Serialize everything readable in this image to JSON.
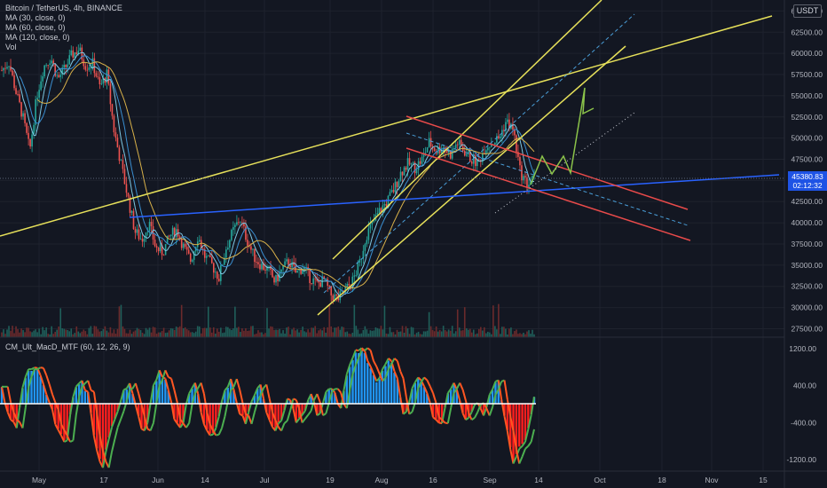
{
  "symbol_legend": {
    "title": "Bitcoin / TetherUS, 4h, BINANCE",
    "ma1": "MA (30, close, 0)",
    "ma2": "MA (60, close, 0)",
    "ma3": "MA (120, close, 0)",
    "vol": "Vol"
  },
  "indicator_legend": {
    "title": "CM_Ult_MacD_MTF (60, 12, 26, 9)"
  },
  "currency_button": "USDT",
  "last_price": {
    "value": "45380.83",
    "countdown": "02:12:32"
  },
  "colors": {
    "background": "#131722",
    "grid": "#1e222d",
    "candle_up": "#26a69a",
    "candle_down": "#ef5350",
    "trendline_yellow": "#e6e05a",
    "channel_red": "#e84a4a",
    "support_blue": "#2962ff",
    "projection_green": "#8bc34a",
    "channel_dashed": "#4a9ed8",
    "ma30": "#7ec8e3",
    "ma60": "#3a8fd1",
    "ma120": "#d8b14a",
    "macd_pos": "#2196f3",
    "macd_neg": "#ff1e1e",
    "macd_line_up": "#4caf50",
    "macd_line_down": "#ff5722"
  },
  "chart_data": {
    "type": "candlestick",
    "price_axis": {
      "ticks": [
        "65000.00",
        "62500.00",
        "60000.00",
        "57500.00",
        "55000.00",
        "52500.00",
        "50000.00",
        "47500.00",
        "45000.00",
        "42500.00",
        "40000.00",
        "37500.00",
        "35000.00",
        "32500.00",
        "30000.00",
        "27500.00"
      ],
      "ylim": [
        26500,
        66300
      ]
    },
    "time_axis": {
      "ticks": [
        "May",
        "17",
        "Jun",
        "14",
        "Jul",
        "19",
        "Aug",
        "16",
        "Sep",
        "14",
        "Oct",
        "18",
        "Nov",
        "15"
      ]
    },
    "indicator_axis": {
      "ticks": [
        "1200.00",
        "400.00",
        "-400.00",
        "-1200.00"
      ],
      "ylim": [
        -1450,
        1450
      ]
    },
    "price_path": [
      [
        0,
        58000
      ],
      [
        1,
        59000
      ],
      [
        2,
        55500
      ],
      [
        3,
        52500
      ],
      [
        4,
        48500
      ],
      [
        5,
        55000
      ],
      [
        6,
        58500
      ],
      [
        7,
        59500
      ],
      [
        8,
        57000
      ],
      [
        9,
        58200
      ],
      [
        10,
        59800
      ],
      [
        11,
        60500
      ],
      [
        12,
        58500
      ],
      [
        13,
        58800
      ],
      [
        14,
        56000
      ],
      [
        15,
        57500
      ],
      [
        16,
        51000
      ],
      [
        17,
        47000
      ],
      [
        18,
        43000
      ],
      [
        19,
        39000
      ],
      [
        20,
        38000
      ],
      [
        21,
        40000
      ],
      [
        22,
        37000
      ],
      [
        23,
        36500
      ],
      [
        24,
        38500
      ],
      [
        25,
        39200
      ],
      [
        26,
        37000
      ],
      [
        27,
        35500
      ],
      [
        28,
        38500
      ],
      [
        29,
        36000
      ],
      [
        30,
        35000
      ],
      [
        31,
        33500
      ],
      [
        32,
        37000
      ],
      [
        33,
        39000
      ],
      [
        34,
        40500
      ],
      [
        35,
        38000
      ],
      [
        36,
        36000
      ],
      [
        37,
        35000
      ],
      [
        38,
        34500
      ],
      [
        39,
        33000
      ],
      [
        40,
        34500
      ],
      [
        41,
        35500
      ],
      [
        42,
        34000
      ],
      [
        43,
        34800
      ],
      [
        44,
        33500
      ],
      [
        45,
        32800
      ],
      [
        46,
        33200
      ],
      [
        47,
        31500
      ],
      [
        48,
        31000
      ],
      [
        49,
        32000
      ],
      [
        50,
        33000
      ],
      [
        51,
        35000
      ],
      [
        52,
        38500
      ],
      [
        53,
        40000
      ],
      [
        54,
        41500
      ],
      [
        55,
        42500
      ],
      [
        56,
        44000
      ],
      [
        57,
        46000
      ],
      [
        58,
        47000
      ],
      [
        59,
        46500
      ],
      [
        60,
        47500
      ],
      [
        61,
        49500
      ],
      [
        62,
        48500
      ],
      [
        63,
        49000
      ],
      [
        64,
        48000
      ],
      [
        65,
        49500
      ],
      [
        66,
        48500
      ],
      [
        67,
        47500
      ],
      [
        68,
        47000
      ],
      [
        69,
        49000
      ],
      [
        70,
        49500
      ],
      [
        71,
        50000
      ],
      [
        72,
        52000
      ],
      [
        73,
        51000
      ],
      [
        74,
        46000
      ],
      [
        75,
        44500
      ],
      [
        76,
        45300
      ]
    ],
    "macd_histogram": [
      [
        0,
        300
      ],
      [
        1,
        -250
      ],
      [
        2,
        -500
      ],
      [
        3,
        450
      ],
      [
        4,
        750
      ],
      [
        5,
        700
      ],
      [
        6,
        300
      ],
      [
        7,
        -150
      ],
      [
        8,
        -650
      ],
      [
        9,
        -800
      ],
      [
        10,
        250
      ],
      [
        11,
        500
      ],
      [
        12,
        200
      ],
      [
        13,
        -900
      ],
      [
        14,
        -1300
      ],
      [
        15,
        -600
      ],
      [
        16,
        -150
      ],
      [
        17,
        300
      ],
      [
        18,
        400
      ],
      [
        19,
        -300
      ],
      [
        20,
        -650
      ],
      [
        21,
        300
      ],
      [
        22,
        700
      ],
      [
        23,
        400
      ],
      [
        24,
        -300
      ],
      [
        25,
        -500
      ],
      [
        26,
        250
      ],
      [
        27,
        400
      ],
      [
        28,
        -400
      ],
      [
        29,
        -700
      ],
      [
        30,
        -350
      ],
      [
        31,
        300
      ],
      [
        32,
        500
      ],
      [
        33,
        -150
      ],
      [
        34,
        -400
      ],
      [
        35,
        200
      ],
      [
        36,
        450
      ],
      [
        37,
        -300
      ],
      [
        38,
        -600
      ],
      [
        39,
        -250
      ],
      [
        40,
        200
      ],
      [
        41,
        -400
      ],
      [
        42,
        -200
      ],
      [
        43,
        250
      ],
      [
        44,
        -300
      ],
      [
        45,
        200
      ],
      [
        46,
        350
      ],
      [
        47,
        -200
      ],
      [
        48,
        600
      ],
      [
        49,
        1100
      ],
      [
        50,
        1200
      ],
      [
        51,
        900
      ],
      [
        52,
        500
      ],
      [
        53,
        700
      ],
      [
        54,
        1000
      ],
      [
        55,
        500
      ],
      [
        56,
        -300
      ],
      [
        57,
        300
      ],
      [
        58,
        600
      ],
      [
        59,
        300
      ],
      [
        60,
        -250
      ],
      [
        61,
        -500
      ],
      [
        62,
        200
      ],
      [
        63,
        500
      ],
      [
        64,
        -200
      ],
      [
        65,
        -350
      ],
      [
        66,
        100
      ],
      [
        67,
        -200
      ],
      [
        68,
        300
      ],
      [
        69,
        500
      ],
      [
        70,
        -300
      ],
      [
        71,
        -1200
      ],
      [
        72,
        -900
      ],
      [
        73,
        -700
      ],
      [
        74,
        200
      ]
    ],
    "annotations": [
      "yellow long-term ascending trendline",
      "yellow ascending channel",
      "red descending channel",
      "blue support line",
      "green projection path"
    ]
  }
}
